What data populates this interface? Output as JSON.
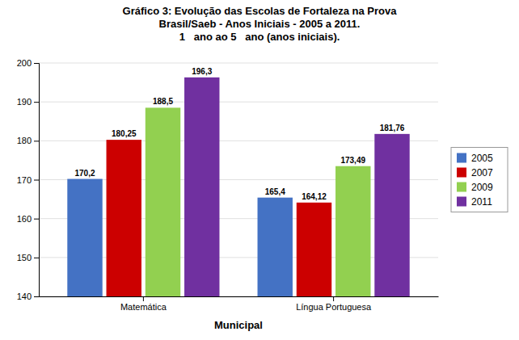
{
  "chart_data": {
    "type": "bar",
    "title": "Gráfico 3: Evolução das Escolas de Fortaleza na Prova\nBrasil/Saeb - Anos Iniciais - 2005 a 2011.\n1   ano ao 5   ano (anos iniciais).",
    "xlabel": "Municipal",
    "categories": [
      "Matemática",
      "Língua Portuguesa"
    ],
    "series": [
      {
        "name": "2005",
        "color": "#4472C4",
        "values": [
          170.2,
          165.4
        ],
        "value_labels": [
          "170,2",
          "165,4"
        ]
      },
      {
        "name": "2007",
        "color": "#CC0000",
        "values": [
          180.25,
          164.12
        ],
        "value_labels": [
          "180,25",
          "164,12"
        ]
      },
      {
        "name": "2009",
        "color": "#92D050",
        "values": [
          188.5,
          173.49
        ],
        "value_labels": [
          "188,5",
          "173,49"
        ]
      },
      {
        "name": "2011",
        "color": "#7030A0",
        "values": [
          196.3,
          181.76
        ],
        "value_labels": [
          "196,3",
          "181,76"
        ]
      }
    ],
    "ylim": [
      140,
      200
    ],
    "yticks": [
      140,
      150,
      160,
      170,
      180,
      190,
      200
    ],
    "grid": true,
    "legend": "right",
    "data_labels": true
  }
}
